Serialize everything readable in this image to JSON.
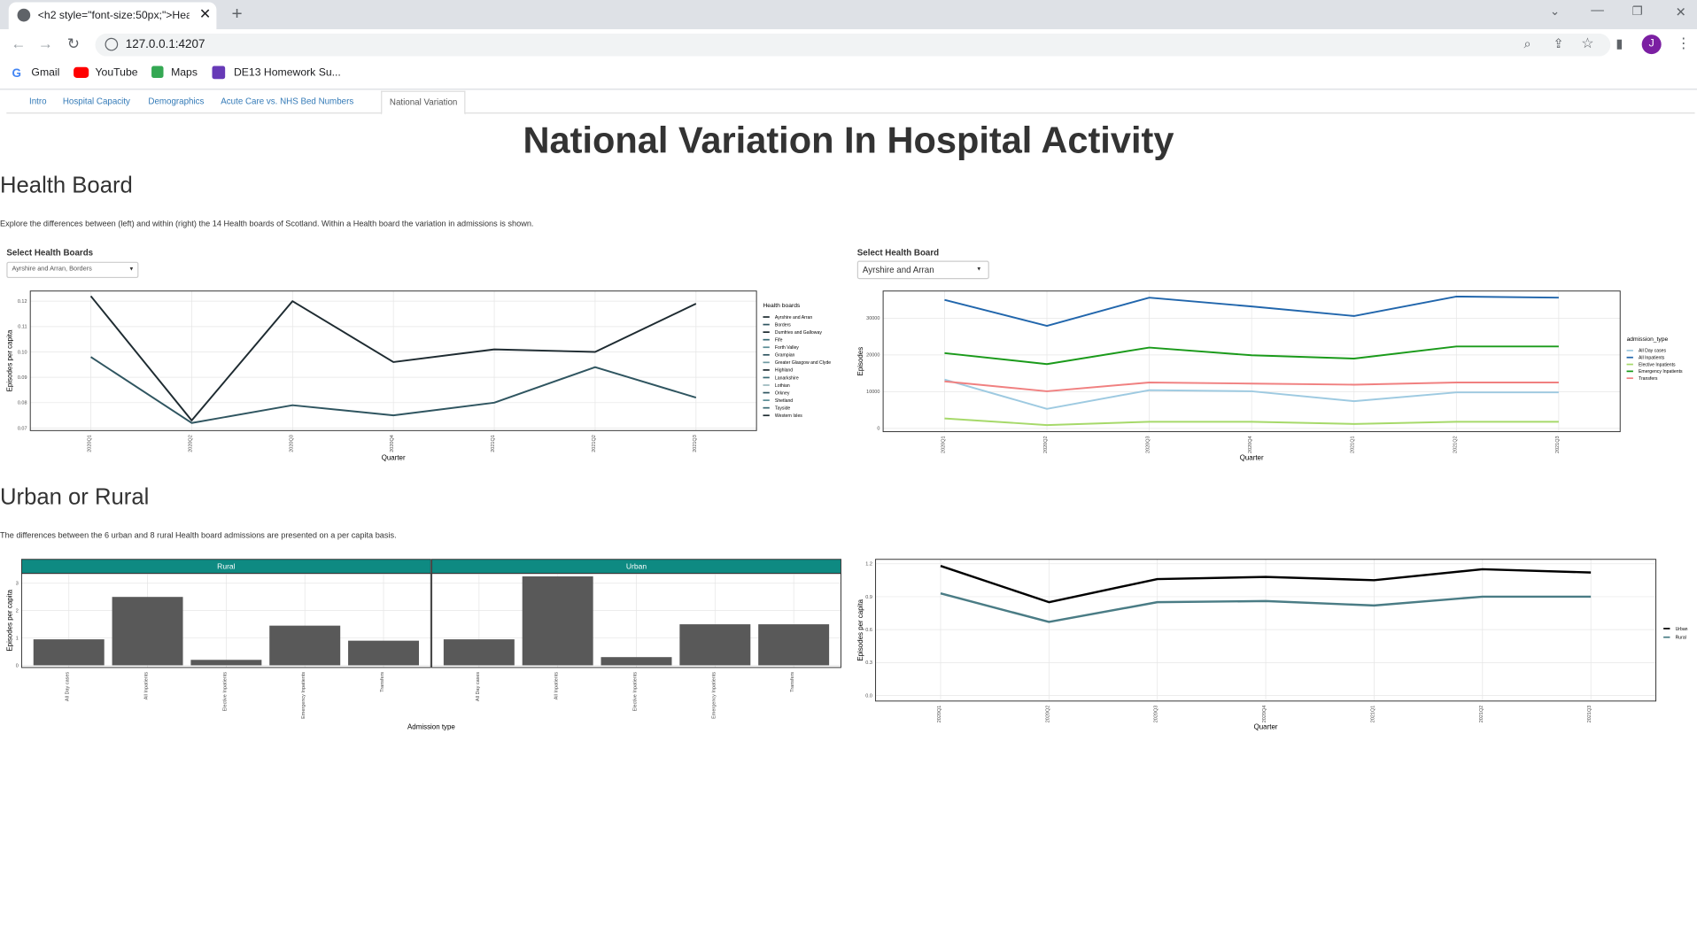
{
  "browser": {
    "tab_title": "<h2 style=\"font-size:50px;\">Hea",
    "url": "127.0.0.1:4207",
    "profile_initial": "J",
    "bookmarks": [
      "Gmail",
      "YouTube",
      "Maps",
      "DE13 Homework Su..."
    ]
  },
  "nav": {
    "tabs": [
      "Intro",
      "Hospital Capacity",
      "Demographics",
      "Acute Care vs. NHS Bed Numbers",
      "National Variation"
    ]
  },
  "page": {
    "title": "National Variation In Hospital Activity",
    "sections": [
      {
        "heading": "Health Board",
        "description": "Explore the differences between (left) and within (right) the 14 Health boards of Scotland. Within a Health board the variation in admissions is shown."
      },
      {
        "heading": "Urban or Rural",
        "description": "The differences between the 6 urban and 8 rural Health board admissions are presented on a per capita basis."
      }
    ],
    "controls": [
      {
        "label": "Select Health Boards",
        "value": "Ayrshire and Arran, Borders"
      },
      {
        "label": "Select Health Board",
        "value": "Ayrshire and Arran"
      }
    ]
  },
  "chart_data": [
    {
      "type": "line",
      "x_label": "Quarter",
      "y_label": "Episodes per capita",
      "legend_title": "Health boards",
      "legend": "right",
      "grid": true,
      "categories": [
        "2020Q1",
        "2020Q2",
        "2020Q3",
        "2020Q4",
        "2021Q1",
        "2021Q2",
        "2021Q3"
      ],
      "ylim": [
        0.069,
        0.124
      ],
      "yticks": [
        0.07,
        0.08,
        0.09,
        {
          "value": 0.1,
          "label": "0.10"
        },
        0.11,
        0.12
      ],
      "series": [
        {
          "name": "Ayrshire and Arran",
          "color": "#1e2b31",
          "values": [
            0.122,
            0.073,
            0.12,
            0.096,
            0.101,
            0.1,
            0.119
          ]
        },
        {
          "name": "Borders",
          "color": "#2f5560",
          "values": [
            0.098,
            0.072,
            0.079,
            0.075,
            0.08,
            0.094,
            0.082
          ]
        },
        {
          "name": "Dumfries and Galloway",
          "color": "#1e2b31",
          "values": [
            null,
            null,
            null,
            null,
            null,
            null,
            null
          ]
        },
        {
          "name": "Fife",
          "color": "#3a6b75",
          "values": [
            null,
            null,
            null,
            null,
            null,
            null,
            null
          ]
        },
        {
          "name": "Forth Valley",
          "color": "#5a8d96",
          "values": [
            null,
            null,
            null,
            null,
            null,
            null,
            null
          ]
        },
        {
          "name": "Grampian",
          "color": "#2f5560",
          "values": [
            null,
            null,
            null,
            null,
            null,
            null,
            null
          ]
        },
        {
          "name": "Greater Glasgow and Clyde",
          "color": "#6f9aa2",
          "values": [
            null,
            null,
            null,
            null,
            null,
            null,
            null
          ]
        },
        {
          "name": "Highland",
          "color": "#1e2b31",
          "values": [
            null,
            null,
            null,
            null,
            null,
            null,
            null
          ]
        },
        {
          "name": "Lanarkshire",
          "color": "#3a6b75",
          "values": [
            null,
            null,
            null,
            null,
            null,
            null,
            null
          ]
        },
        {
          "name": "Lothian",
          "color": "#9bb8be",
          "values": [
            null,
            null,
            null,
            null,
            null,
            null,
            null
          ]
        },
        {
          "name": "Orkney",
          "color": "#2f5560",
          "values": [
            null,
            null,
            null,
            null,
            null,
            null,
            null
          ]
        },
        {
          "name": "Shetland",
          "color": "#5a8d96",
          "values": [
            null,
            null,
            null,
            null,
            null,
            null,
            null
          ]
        },
        {
          "name": "Tayside",
          "color": "#3a6b75",
          "values": [
            null,
            null,
            null,
            null,
            null,
            null,
            null
          ]
        },
        {
          "name": "Western Isles",
          "color": "#1e2b31",
          "values": [
            null,
            null,
            null,
            null,
            null,
            null,
            null
          ]
        }
      ]
    },
    {
      "type": "line",
      "x_label": "Quarter",
      "y_label": "Episodes",
      "legend_title": "admission_type",
      "legend": "right",
      "grid": true,
      "categories": [
        "2020Q1",
        "2020Q2",
        "2020Q3",
        "2020Q4",
        "2021Q1",
        "2021Q2",
        "2021Q3"
      ],
      "ylim": [
        -900,
        37400
      ],
      "yticks": [
        0,
        10000,
        20000,
        30000
      ],
      "series": [
        {
          "name": "All Day cases",
          "color": "#9ecae1",
          "values": [
            13300,
            5300,
            10400,
            10100,
            7400,
            9800,
            9800
          ]
        },
        {
          "name": "All Inpatients",
          "color": "#2166ac",
          "values": [
            35000,
            27900,
            35600,
            33200,
            30600,
            35900,
            35600
          ]
        },
        {
          "name": "Elective Inpatients",
          "color": "#a6d96a",
          "values": [
            2700,
            900,
            1800,
            1800,
            1200,
            1800,
            1800
          ]
        },
        {
          "name": "Emergency Inpatients",
          "color": "#1a9a1a",
          "values": [
            20500,
            17500,
            22000,
            19900,
            19000,
            22300,
            22300
          ]
        },
        {
          "name": "Transfers",
          "color": "#f08080",
          "values": [
            12800,
            10100,
            12500,
            12200,
            11900,
            12500,
            12500
          ]
        }
      ]
    },
    {
      "type": "bar",
      "x_label": "Admission type",
      "y_label": "Episodes per capita",
      "grid": true,
      "strip_color": "#0e8a82",
      "categories": [
        "All Day cases",
        "All Inpatients",
        "Elective Inpatients",
        "Emergency Inpatients",
        "Transfers"
      ],
      "ylim": [
        -0.08,
        3.36
      ],
      "yticks": [
        0,
        1,
        2,
        3
      ],
      "series": [
        {
          "name": "Rural",
          "color": "#595959",
          "values": [
            0.95,
            2.5,
            0.2,
            1.45,
            0.9
          ]
        },
        {
          "name": "Urban",
          "color": "#595959",
          "values": [
            0.95,
            3.25,
            0.3,
            1.5,
            1.5
          ]
        }
      ]
    },
    {
      "type": "line",
      "x_label": "Quarter",
      "y_label": "Episodes per capita",
      "legend": "right",
      "grid": true,
      "categories": [
        "2020Q1",
        "2020Q2",
        "2020Q3",
        "2020Q4",
        "2021Q1",
        "2021Q2",
        "2021Q3"
      ],
      "ylim": [
        -0.05,
        1.24
      ],
      "yticks": [
        {
          "value": 0,
          "label": "0.0"
        },
        0.3,
        0.6,
        0.9,
        1.2
      ],
      "series": [
        {
          "name": "Urban",
          "color": "#000000",
          "values": [
            1.18,
            0.85,
            1.06,
            1.08,
            1.05,
            1.15,
            1.12
          ]
        },
        {
          "name": "Rural",
          "color": "#4a7c85",
          "values": [
            0.93,
            0.67,
            0.85,
            0.86,
            0.82,
            0.9,
            0.9
          ]
        }
      ]
    }
  ]
}
